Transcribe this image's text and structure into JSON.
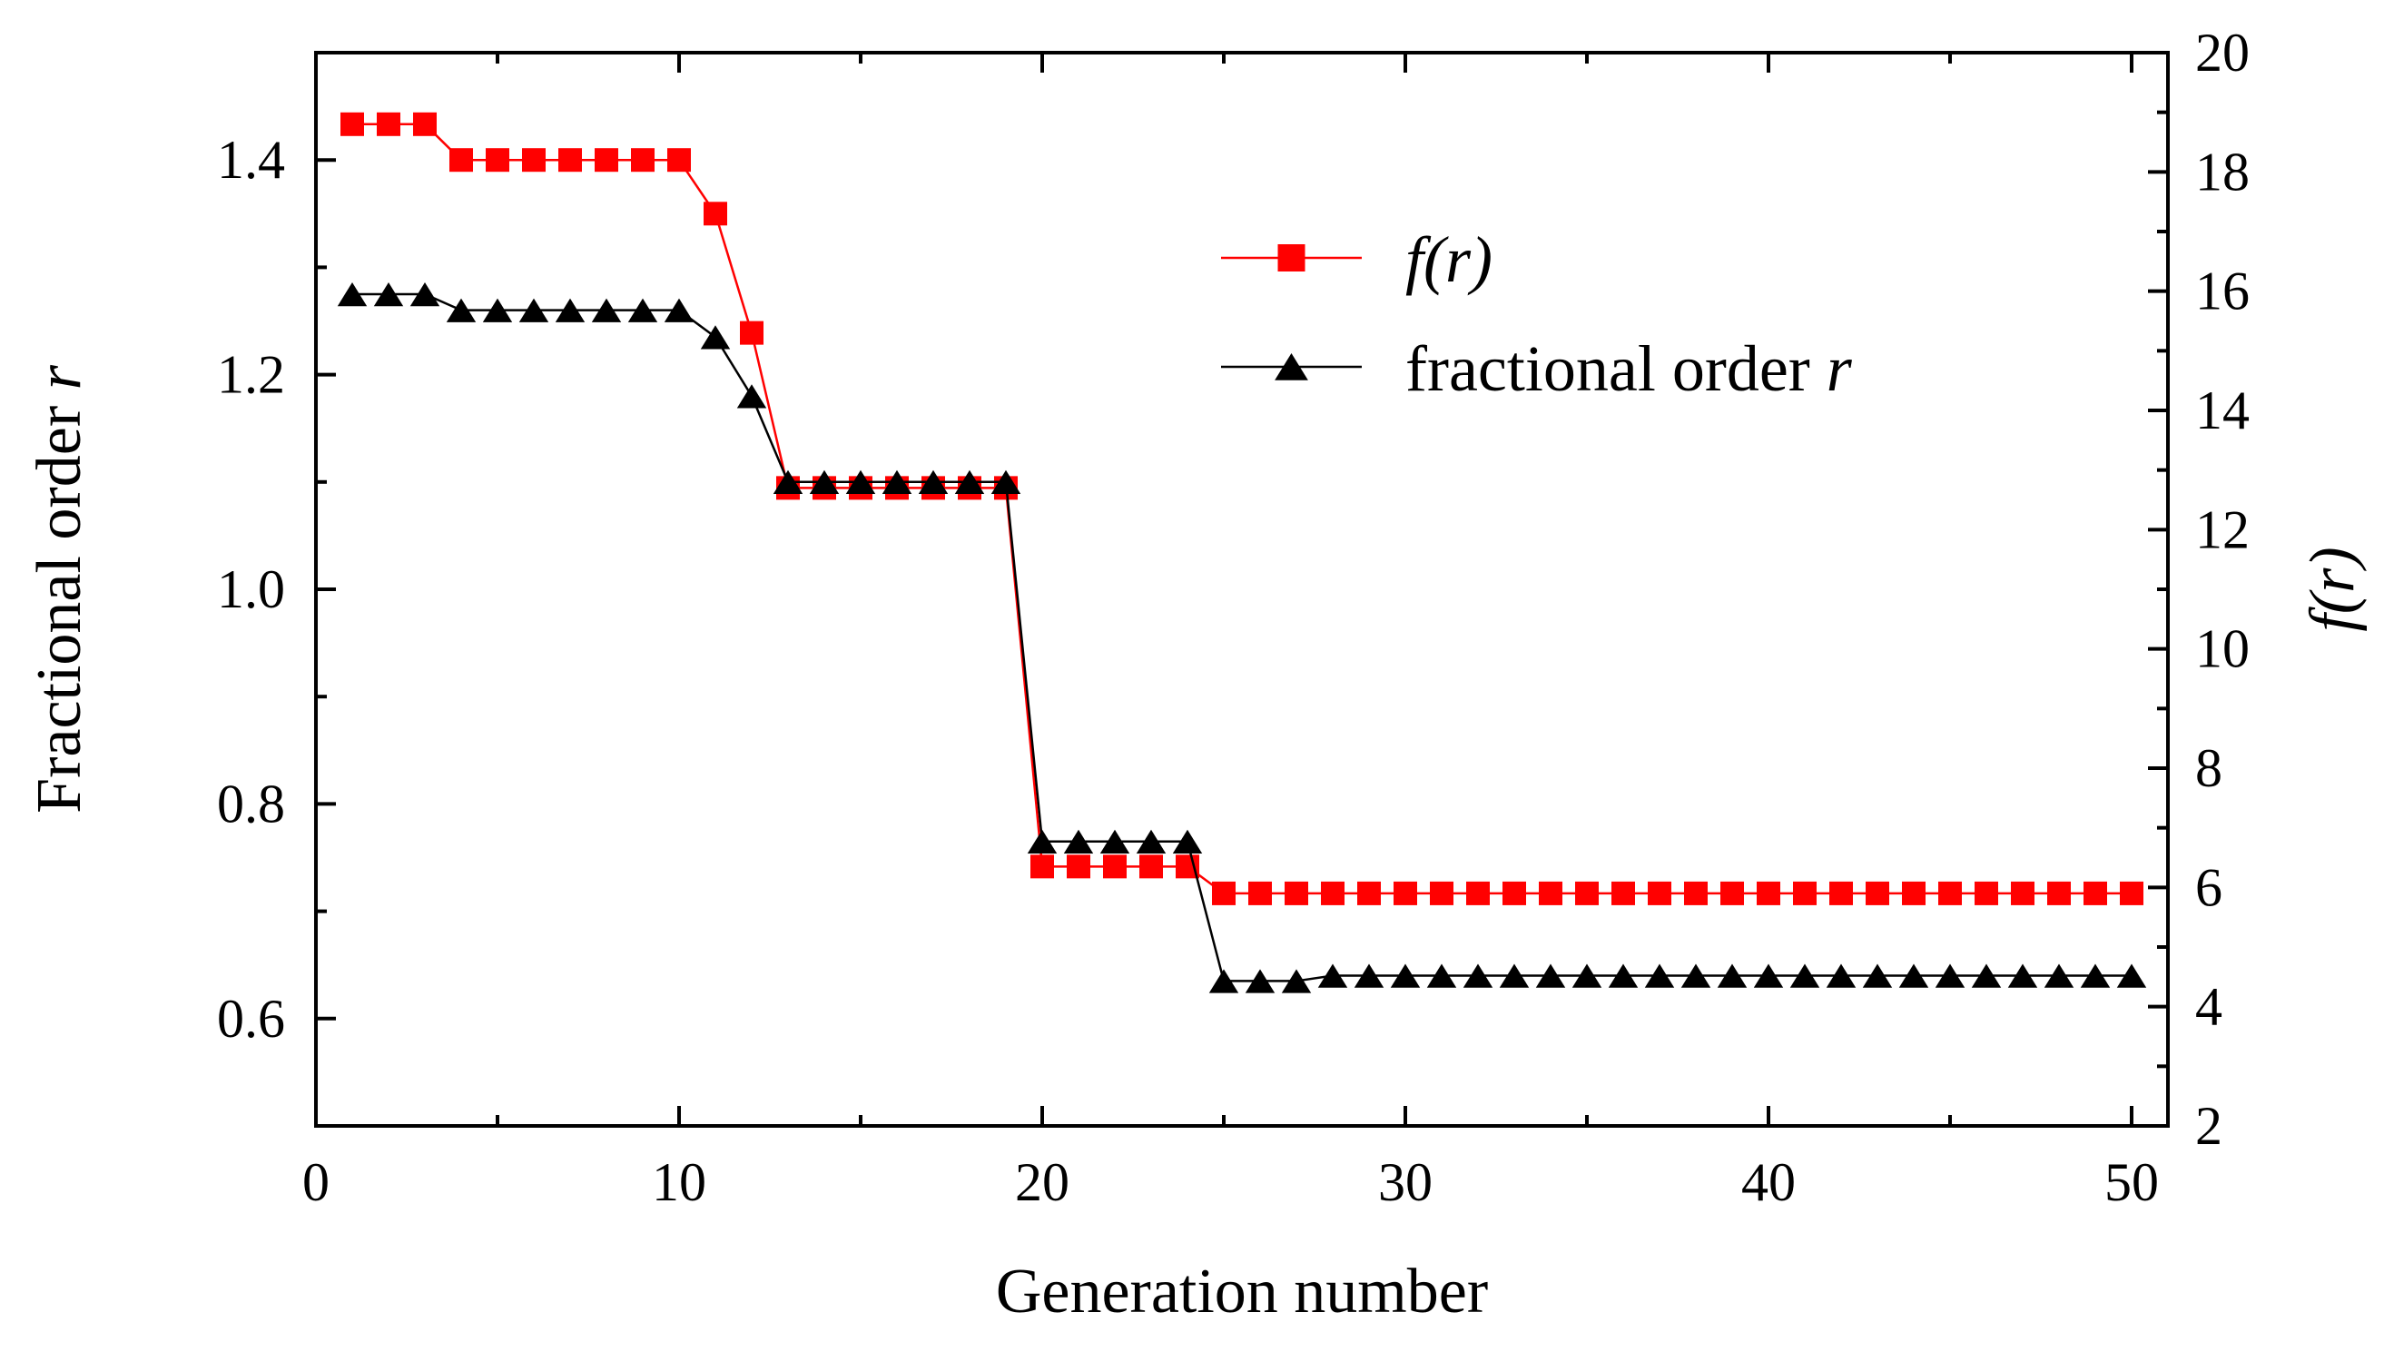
{
  "chart_data": {
    "type": "line",
    "xlabel": "Generation number",
    "ylabel_left": {
      "text": "Fractional order ",
      "var": "r"
    },
    "ylabel_right": {
      "text": "f(r)"
    },
    "xlim": [
      0,
      51
    ],
    "ylim_left": [
      0.5,
      1.5
    ],
    "ylim_right": [
      2,
      20
    ],
    "x_ticks": [
      "0",
      "10",
      "20",
      "30",
      "40",
      "50"
    ],
    "y_left_ticks": [
      "0.6",
      "0.8",
      "1.0",
      "1.2",
      "1.4"
    ],
    "y_right_ticks": [
      "2",
      "4",
      "6",
      "8",
      "10",
      "12",
      "14",
      "16",
      "18",
      "20"
    ],
    "grid": false,
    "legend_position": "top-right",
    "series": [
      {
        "name": "f(r)",
        "axis": "right",
        "color": "#ff0000",
        "marker": "square",
        "x": [
          1,
          2,
          3,
          4,
          5,
          6,
          7,
          8,
          9,
          10,
          11,
          12,
          13,
          14,
          15,
          16,
          17,
          18,
          19,
          20,
          21,
          22,
          23,
          24,
          25,
          26,
          27,
          28,
          29,
          30,
          31,
          32,
          33,
          34,
          35,
          36,
          37,
          38,
          39,
          40,
          41,
          42,
          43,
          44,
          45,
          46,
          47,
          48,
          49,
          50
        ],
        "y": [
          18.8,
          18.8,
          18.8,
          18.2,
          18.2,
          18.2,
          18.2,
          18.2,
          18.2,
          18.2,
          17.3,
          15.3,
          12.7,
          12.7,
          12.7,
          12.7,
          12.7,
          12.7,
          12.7,
          6.35,
          6.35,
          6.35,
          6.35,
          6.35,
          5.9,
          5.9,
          5.9,
          5.9,
          5.9,
          5.9,
          5.9,
          5.9,
          5.9,
          5.9,
          5.9,
          5.9,
          5.9,
          5.9,
          5.9,
          5.9,
          5.9,
          5.9,
          5.9,
          5.9,
          5.9,
          5.9,
          5.9,
          5.9,
          5.9,
          5.9
        ]
      },
      {
        "name": "fractional order r",
        "axis": "left",
        "color": "#000000",
        "marker": "triangle",
        "x": [
          1,
          2,
          3,
          4,
          5,
          6,
          7,
          8,
          9,
          10,
          11,
          12,
          13,
          14,
          15,
          16,
          17,
          18,
          19,
          20,
          21,
          22,
          23,
          24,
          25,
          26,
          27,
          28,
          29,
          30,
          31,
          32,
          33,
          34,
          35,
          36,
          37,
          38,
          39,
          40,
          41,
          42,
          43,
          44,
          45,
          46,
          47,
          48,
          49,
          50
        ],
        "y": [
          1.275,
          1.275,
          1.275,
          1.26,
          1.26,
          1.26,
          1.26,
          1.26,
          1.26,
          1.26,
          1.235,
          1.18,
          1.1,
          1.1,
          1.1,
          1.1,
          1.1,
          1.1,
          1.1,
          0.765,
          0.765,
          0.765,
          0.765,
          0.765,
          0.635,
          0.635,
          0.635,
          0.64,
          0.64,
          0.64,
          0.64,
          0.64,
          0.64,
          0.64,
          0.64,
          0.64,
          0.64,
          0.64,
          0.64,
          0.64,
          0.64,
          0.64,
          0.64,
          0.64,
          0.64,
          0.64,
          0.64,
          0.64,
          0.64,
          0.64
        ]
      }
    ],
    "legend": [
      {
        "series": 0,
        "label_func": "f",
        "label_rest": "(r)"
      },
      {
        "series": 1,
        "label_text": "fractional order ",
        "label_var": "r"
      }
    ]
  }
}
